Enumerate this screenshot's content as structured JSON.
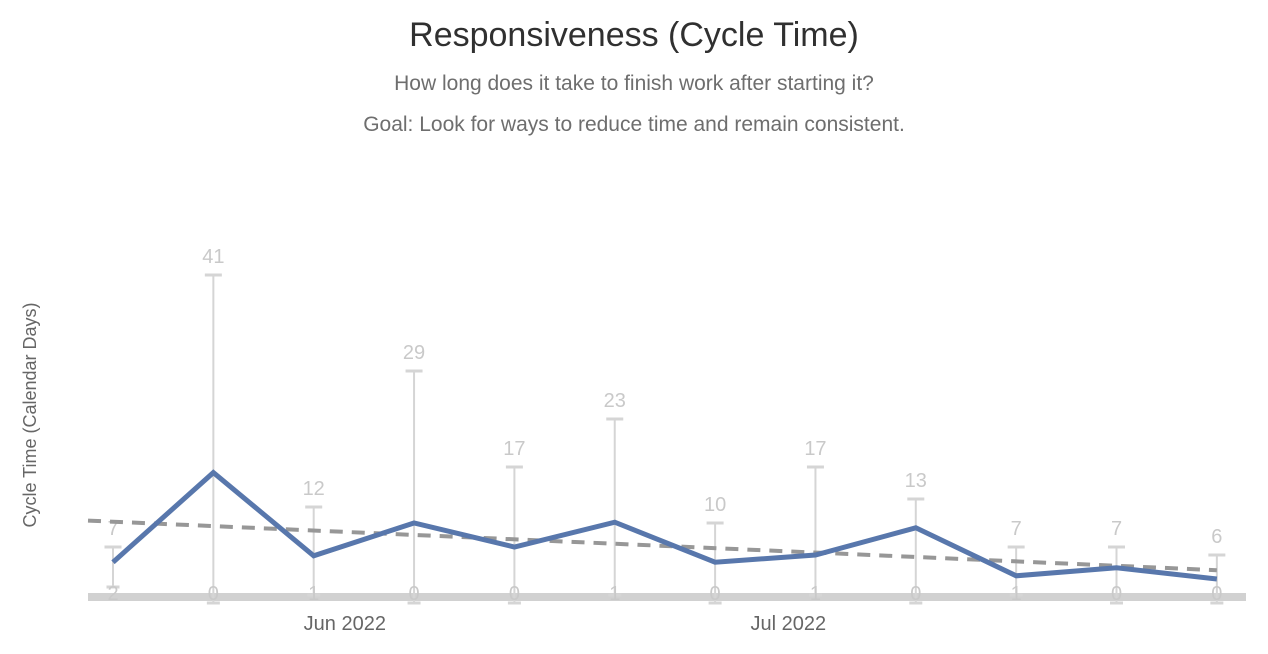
{
  "header": {
    "title": "Responsiveness (Cycle Time)",
    "subtitle_line1": "How long does it take to finish work after starting it?",
    "subtitle_line2": "Goal: Look for ways to reduce time and remain consistent."
  },
  "chart_data": {
    "type": "line",
    "title": "Responsiveness (Cycle Time)",
    "xlabel": "",
    "ylabel": "Cycle Time (Calendar Days)",
    "ylim": [
      0,
      46
    ],
    "grid": false,
    "legend": "none",
    "x_axis_ticks": [
      {
        "label": "Jun 2022",
        "index": 2.31
      },
      {
        "label": "Jul 2022",
        "index": 6.73
      }
    ],
    "num_points": 12,
    "series": [
      {
        "name": "average_cycle_time",
        "values": [
          5.1,
          16.3,
          5.9,
          10.0,
          7.0,
          10.1,
          5.1,
          6.0,
          9.4,
          3.4,
          4.4,
          3.0
        ]
      },
      {
        "name": "max_cycle_time",
        "values": [
          7,
          41,
          12,
          29,
          17,
          23,
          10,
          17,
          13,
          7,
          7,
          6
        ]
      },
      {
        "name": "min_cycle_time",
        "values": [
          2,
          0,
          1,
          0,
          0,
          1,
          0,
          1,
          0,
          1,
          0,
          0
        ]
      }
    ],
    "max_labels": [
      "7",
      "41",
      "12",
      "29",
      "17",
      "23",
      "10",
      "17",
      "13",
      "7",
      "7",
      "6"
    ],
    "min_labels": [
      "2",
      "0",
      "1",
      "0",
      "0",
      "1",
      "0",
      "1",
      "0",
      "1",
      "0",
      "0"
    ],
    "trend": {
      "name": "trend_line",
      "start_value": 10.3,
      "end_value": 4.1,
      "style": "dashed"
    },
    "colors": {
      "average_line": "#5877ac",
      "whisker": "#d5d5d5",
      "value_label": "#c9c9c9",
      "trend_line": "#979797",
      "axis_line": "#d1d1d1",
      "axis_text": "#666666",
      "title_text": "#303030",
      "subtitle_text": "#6e6e6e"
    }
  }
}
